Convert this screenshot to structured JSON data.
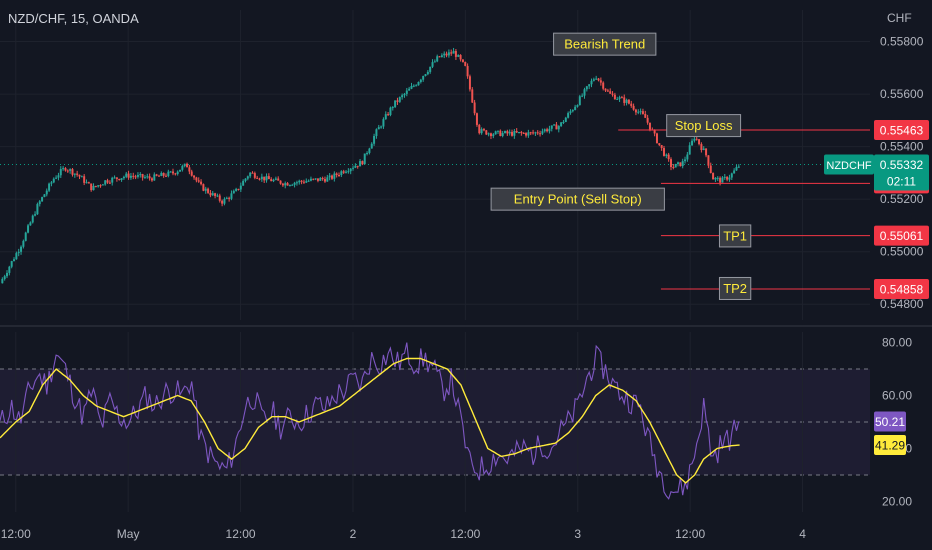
{
  "header": {
    "symbol_label": "NZD/CHF, 15, OANDA"
  },
  "price_axis": {
    "unit": "CHF"
  },
  "chart_data": [
    {
      "type": "candlestick",
      "symbol": "NZDCHF",
      "interval": "15",
      "broker": "OANDA",
      "y_ticks": [
        0.548,
        0.55,
        0.552,
        0.554,
        0.556,
        0.558
      ],
      "y_tick_labels": [
        "0.54800",
        "0.55000",
        "0.55200",
        "0.55400",
        "0.55600",
        "0.55800"
      ],
      "ylim": [
        0.5474,
        0.5592
      ],
      "x_ticks": [
        {
          "day": 0.5,
          "label": "12:00"
        },
        {
          "day": 1.0,
          "label": "May"
        },
        {
          "day": 1.5,
          "label": "12:00"
        },
        {
          "day": 2.0,
          "label": "2"
        },
        {
          "day": 2.5,
          "label": "12:00"
        },
        {
          "day": 3.0,
          "label": "3"
        },
        {
          "day": 3.5,
          "label": "12:00"
        },
        {
          "day": 4.0,
          "label": "4"
        }
      ],
      "xlim": [
        0.43,
        4.3
      ],
      "close_path": [
        [
          0.43,
          0.5488
        ],
        [
          0.52,
          0.5502
        ],
        [
          0.6,
          0.5518
        ],
        [
          0.67,
          0.5528
        ],
        [
          0.72,
          0.5532
        ],
        [
          0.78,
          0.5529
        ],
        [
          0.84,
          0.5524
        ],
        [
          0.9,
          0.5527
        ],
        [
          1.0,
          0.5529
        ],
        [
          1.1,
          0.5528
        ],
        [
          1.2,
          0.553
        ],
        [
          1.26,
          0.5533
        ],
        [
          1.32,
          0.5525
        ],
        [
          1.42,
          0.5519
        ],
        [
          1.48,
          0.5523
        ],
        [
          1.54,
          0.553
        ],
        [
          1.6,
          0.5528
        ],
        [
          1.7,
          0.5526
        ],
        [
          1.8,
          0.5527
        ],
        [
          1.9,
          0.5528
        ],
        [
          1.96,
          0.5531
        ],
        [
          2.04,
          0.5534
        ],
        [
          2.1,
          0.5545
        ],
        [
          2.18,
          0.5556
        ],
        [
          2.28,
          0.5564
        ],
        [
          2.38,
          0.5574
        ],
        [
          2.45,
          0.5576
        ],
        [
          2.5,
          0.557
        ],
        [
          2.56,
          0.5546
        ],
        [
          2.62,
          0.5545
        ],
        [
          2.7,
          0.5545
        ],
        [
          2.8,
          0.5545
        ],
        [
          2.92,
          0.5548
        ],
        [
          3.0,
          0.5557
        ],
        [
          3.08,
          0.5567
        ],
        [
          3.14,
          0.556
        ],
        [
          3.22,
          0.5557
        ],
        [
          3.3,
          0.5551
        ],
        [
          3.36,
          0.5541
        ],
        [
          3.42,
          0.5532
        ],
        [
          3.47,
          0.5534
        ],
        [
          3.52,
          0.5544
        ],
        [
          3.57,
          0.5537
        ],
        [
          3.6,
          0.5528
        ],
        [
          3.64,
          0.5527
        ],
        [
          3.68,
          0.5529
        ],
        [
          3.72,
          0.5533
        ]
      ],
      "levels": [
        {
          "name": "Stop Loss",
          "value": 0.55463,
          "label": "0.55463"
        },
        {
          "name": "Entry Point (Sell Stop)",
          "value": 0.5526,
          "label": "0.55260"
        },
        {
          "name": "TP1",
          "value": 0.55061,
          "label": "0.55061"
        },
        {
          "name": "TP2",
          "value": 0.54858,
          "label": "0.54858"
        }
      ],
      "last_price": {
        "value": 0.55332,
        "label": "0.55332",
        "symbol": "NZDCHF",
        "countdown": "02:11"
      },
      "annotations": [
        {
          "text": "Bearish Trend",
          "day": 3.12,
          "price": 0.5579
        },
        {
          "text": "Stop Loss",
          "day": 3.56,
          "price": 0.5548
        },
        {
          "text": "Entry Point (Sell Stop)",
          "day": 3.0,
          "price": 0.552
        },
        {
          "text": "TP1",
          "day": 3.7,
          "price": 0.5506
        },
        {
          "text": "TP2",
          "day": 3.7,
          "price": 0.5486
        }
      ],
      "colors": {
        "up": "#26a69a",
        "down": "#ef5350",
        "level": "#f23645",
        "last": "#089981",
        "annotation_text": "#ffeb3b"
      }
    },
    {
      "type": "line",
      "indicator": "RSI",
      "y_ticks": [
        20,
        40,
        60,
        80
      ],
      "y_tick_labels": [
        "20.00",
        "40.00",
        "60.00",
        "80.00"
      ],
      "ylim": [
        16,
        84
      ],
      "band": [
        30,
        70
      ],
      "midline": 50,
      "rsi_path": [
        [
          0.43,
          49
        ],
        [
          0.48,
          56
        ],
        [
          0.52,
          50
        ],
        [
          0.56,
          62
        ],
        [
          0.6,
          68
        ],
        [
          0.64,
          64
        ],
        [
          0.68,
          76
        ],
        [
          0.72,
          70
        ],
        [
          0.76,
          60
        ],
        [
          0.8,
          52
        ],
        [
          0.84,
          62
        ],
        [
          0.88,
          48
        ],
        [
          0.92,
          58
        ],
        [
          0.96,
          52
        ],
        [
          1.0,
          50
        ],
        [
          1.04,
          54
        ],
        [
          1.08,
          60
        ],
        [
          1.12,
          56
        ],
        [
          1.16,
          61
        ],
        [
          1.2,
          62
        ],
        [
          1.24,
          60
        ],
        [
          1.28,
          66
        ],
        [
          1.32,
          44
        ],
        [
          1.36,
          38
        ],
        [
          1.4,
          33
        ],
        [
          1.44,
          32
        ],
        [
          1.48,
          42
        ],
        [
          1.52,
          56
        ],
        [
          1.56,
          60
        ],
        [
          1.6,
          50
        ],
        [
          1.64,
          54
        ],
        [
          1.68,
          48
        ],
        [
          1.72,
          52
        ],
        [
          1.76,
          50
        ],
        [
          1.8,
          53
        ],
        [
          1.84,
          57
        ],
        [
          1.88,
          55
        ],
        [
          1.92,
          60
        ],
        [
          1.96,
          62
        ],
        [
          2.0,
          66
        ],
        [
          2.04,
          64
        ],
        [
          2.08,
          74
        ],
        [
          2.12,
          72
        ],
        [
          2.16,
          76
        ],
        [
          2.2,
          72
        ],
        [
          2.24,
          76
        ],
        [
          2.28,
          72
        ],
        [
          2.32,
          74
        ],
        [
          2.36,
          70
        ],
        [
          2.4,
          62
        ],
        [
          2.44,
          66
        ],
        [
          2.48,
          50
        ],
        [
          2.52,
          34
        ],
        [
          2.56,
          32
        ],
        [
          2.6,
          34
        ],
        [
          2.64,
          38
        ],
        [
          2.68,
          36
        ],
        [
          2.72,
          38
        ],
        [
          2.76,
          40
        ],
        [
          2.8,
          38
        ],
        [
          2.84,
          42
        ],
        [
          2.88,
          40
        ],
        [
          2.92,
          46
        ],
        [
          2.96,
          50
        ],
        [
          3.0,
          56
        ],
        [
          3.04,
          66
        ],
        [
          3.08,
          74
        ],
        [
          3.12,
          70
        ],
        [
          3.16,
          64
        ],
        [
          3.2,
          60
        ],
        [
          3.24,
          58
        ],
        [
          3.28,
          55
        ],
        [
          3.32,
          42
        ],
        [
          3.36,
          32
        ],
        [
          3.4,
          26
        ],
        [
          3.44,
          24
        ],
        [
          3.48,
          26
        ],
        [
          3.52,
          38
        ],
        [
          3.56,
          56
        ],
        [
          3.6,
          36
        ],
        [
          3.64,
          42
        ],
        [
          3.68,
          44
        ],
        [
          3.72,
          50.21
        ]
      ],
      "ma_path": [
        [
          0.43,
          44
        ],
        [
          0.5,
          50
        ],
        [
          0.56,
          54
        ],
        [
          0.62,
          64
        ],
        [
          0.68,
          70
        ],
        [
          0.74,
          66
        ],
        [
          0.8,
          60
        ],
        [
          0.86,
          56
        ],
        [
          0.92,
          54
        ],
        [
          0.98,
          52
        ],
        [
          1.04,
          54
        ],
        [
          1.1,
          56
        ],
        [
          1.16,
          58
        ],
        [
          1.22,
          60
        ],
        [
          1.28,
          58
        ],
        [
          1.34,
          50
        ],
        [
          1.4,
          40
        ],
        [
          1.46,
          36
        ],
        [
          1.52,
          40
        ],
        [
          1.58,
          48
        ],
        [
          1.64,
          52
        ],
        [
          1.7,
          52
        ],
        [
          1.76,
          50
        ],
        [
          1.82,
          52
        ],
        [
          1.88,
          54
        ],
        [
          1.94,
          56
        ],
        [
          2.0,
          60
        ],
        [
          2.06,
          64
        ],
        [
          2.12,
          68
        ],
        [
          2.18,
          72
        ],
        [
          2.24,
          74
        ],
        [
          2.3,
          74
        ],
        [
          2.36,
          72
        ],
        [
          2.42,
          70
        ],
        [
          2.48,
          64
        ],
        [
          2.54,
          52
        ],
        [
          2.6,
          40
        ],
        [
          2.66,
          37
        ],
        [
          2.72,
          38
        ],
        [
          2.78,
          40
        ],
        [
          2.84,
          41
        ],
        [
          2.9,
          42
        ],
        [
          2.96,
          46
        ],
        [
          3.02,
          52
        ],
        [
          3.08,
          60
        ],
        [
          3.14,
          64
        ],
        [
          3.2,
          62
        ],
        [
          3.26,
          58
        ],
        [
          3.32,
          50
        ],
        [
          3.38,
          40
        ],
        [
          3.44,
          30
        ],
        [
          3.48,
          27
        ],
        [
          3.52,
          30
        ],
        [
          3.56,
          36
        ],
        [
          3.62,
          40
        ],
        [
          3.68,
          41
        ],
        [
          3.72,
          41.29
        ]
      ],
      "last_values": [
        {
          "name": "rsi",
          "value": 50.21,
          "label": "50.21",
          "color": "#7e57c2"
        },
        {
          "name": "ma",
          "value": 41.29,
          "label": "41.29",
          "color": "#ffeb3b"
        }
      ],
      "colors": {
        "rsi": "#7e57c2",
        "ma": "#ffeb3b",
        "band_fill": "rgba(126,87,194,0.10)"
      }
    }
  ]
}
